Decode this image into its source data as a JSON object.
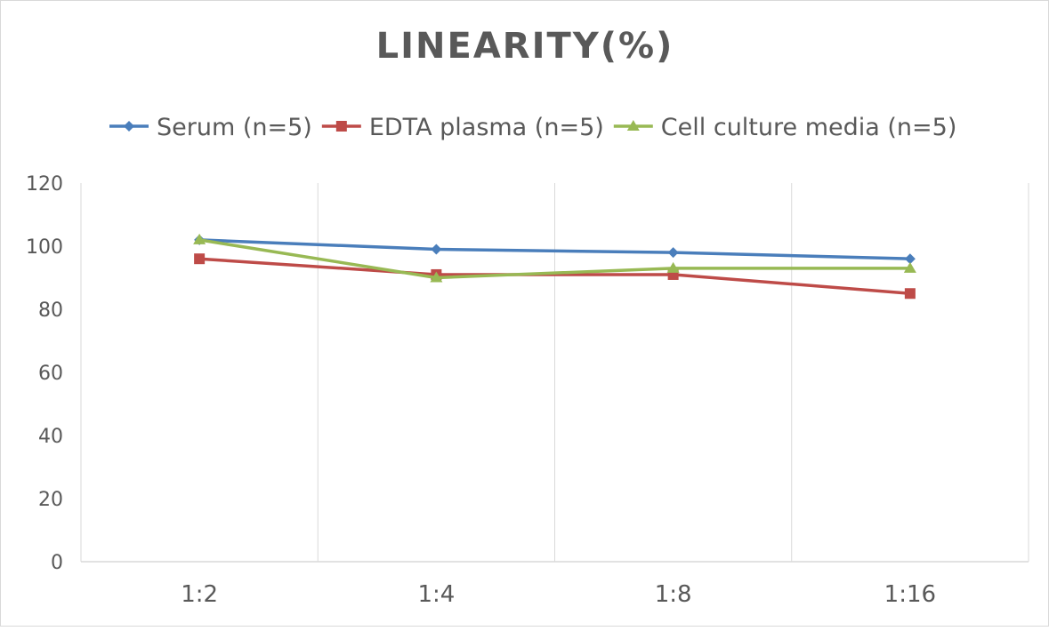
{
  "chart_data": {
    "type": "line",
    "title": "LINEARITY(%)",
    "xlabel": "",
    "ylabel": "",
    "categories": [
      "1:2",
      "1:4",
      "1:8",
      "1:16"
    ],
    "ylim": [
      0,
      120
    ],
    "yticks": [
      "0",
      "20",
      "40",
      "60",
      "80",
      "100",
      "120"
    ],
    "grid": "vertical",
    "legend_position": "top",
    "series": [
      {
        "name": "Serum (n=5)",
        "values": [
          102,
          99,
          98,
          96
        ],
        "color": "#4a7ebb",
        "marker": "diamond"
      },
      {
        "name": "EDTA plasma (n=5)",
        "values": [
          96,
          91,
          91,
          85
        ],
        "color": "#be4b48",
        "marker": "square"
      },
      {
        "name": "Cell culture media (n=5)",
        "values": [
          102,
          90,
          93,
          93
        ],
        "color": "#98b954",
        "marker": "triangle"
      }
    ]
  }
}
